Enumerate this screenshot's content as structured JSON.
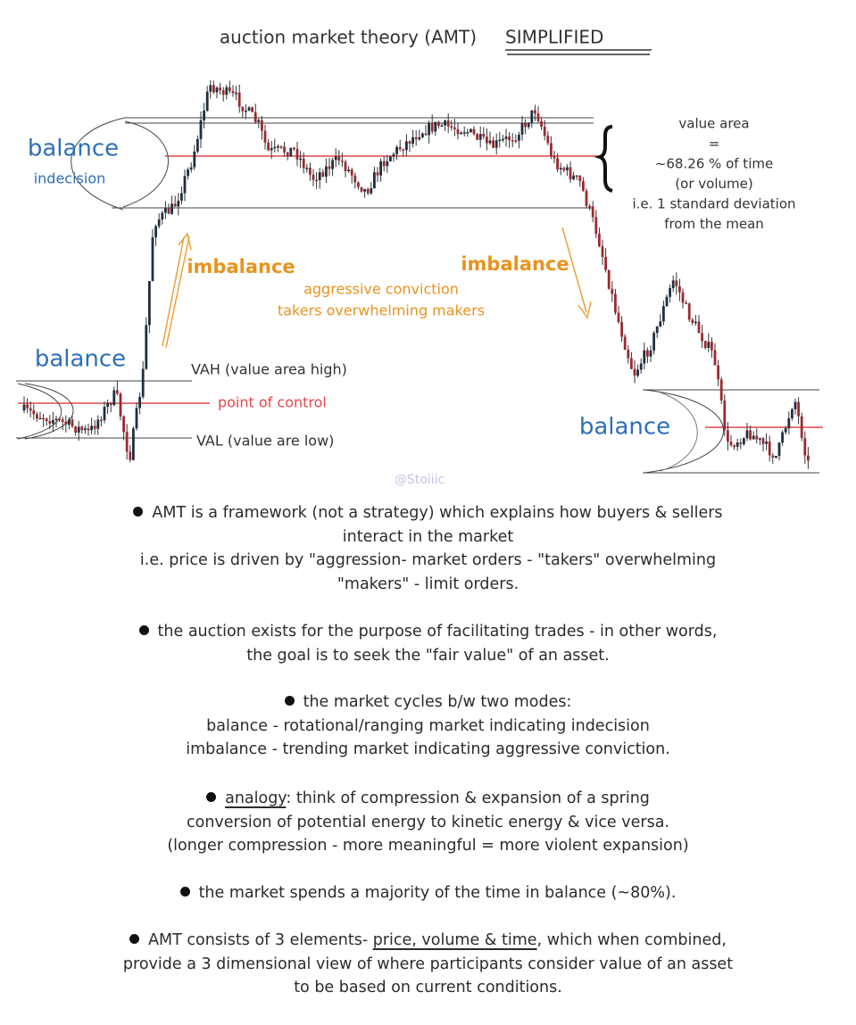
{
  "header": {
    "title": "auction market theory (AMT)",
    "title_emphasis": "SIMPLIFIED"
  },
  "diagram": {
    "top_balance": {
      "label": "balance",
      "sublabel": "indecision"
    },
    "value_area_note": [
      "value area",
      "=",
      "~68.26 % of time",
      "(or volume)",
      "i.e. 1 standard deviation",
      "from the mean"
    ],
    "imbalance_left": "imbalance",
    "imbalance_right": "imbalance",
    "imbalance_note": [
      "aggressive conviction",
      "takers overwhelming makers"
    ],
    "left_balance": {
      "label": "balance",
      "vah": "VAH (value area high)",
      "poc": "point of control",
      "val": "VAL  (value are low)"
    },
    "right_balance": {
      "label": "balance"
    },
    "watermark": "@Stoiiic"
  },
  "bullets": [
    {
      "lines": [
        "AMT is a framework (not a strategy) which explains how buyers & sellers",
        "interact in the market",
        "i.e. price is driven by \"aggression- market orders - \"takers\" overwhelming",
        "\"makers\" - limit orders."
      ]
    },
    {
      "lines": [
        "the auction exists for the purpose of facilitating trades - in other words,",
        "the goal is to seek the \"fair value\" of an asset."
      ]
    },
    {
      "lines": [
        "the market cycles b/w two modes:",
        "balance - rotational/ranging market indicating indecision",
        "imbalance - trending market indicating aggressive conviction."
      ]
    },
    {
      "lines": [
        [
          {
            "text": "analogy",
            "underlined": true
          },
          {
            "text": ": think of compression & expansion of a spring"
          }
        ],
        "conversion of potential energy to kinetic energy & vice versa.",
        "(longer compression - more meaningful = more violent expansion)"
      ]
    },
    {
      "lines": [
        "the market spends a majority of the time in balance (~80%)."
      ]
    },
    {
      "lines": [
        [
          {
            "text": "AMT consists of 3 elements- "
          },
          {
            "text": "price, volume & time",
            "underlined": true
          },
          {
            "text": ", which when combined,"
          }
        ],
        "provide a 3 dimensional view of where participants consider value of an asset",
        "to be based on current conditions."
      ]
    }
  ]
}
